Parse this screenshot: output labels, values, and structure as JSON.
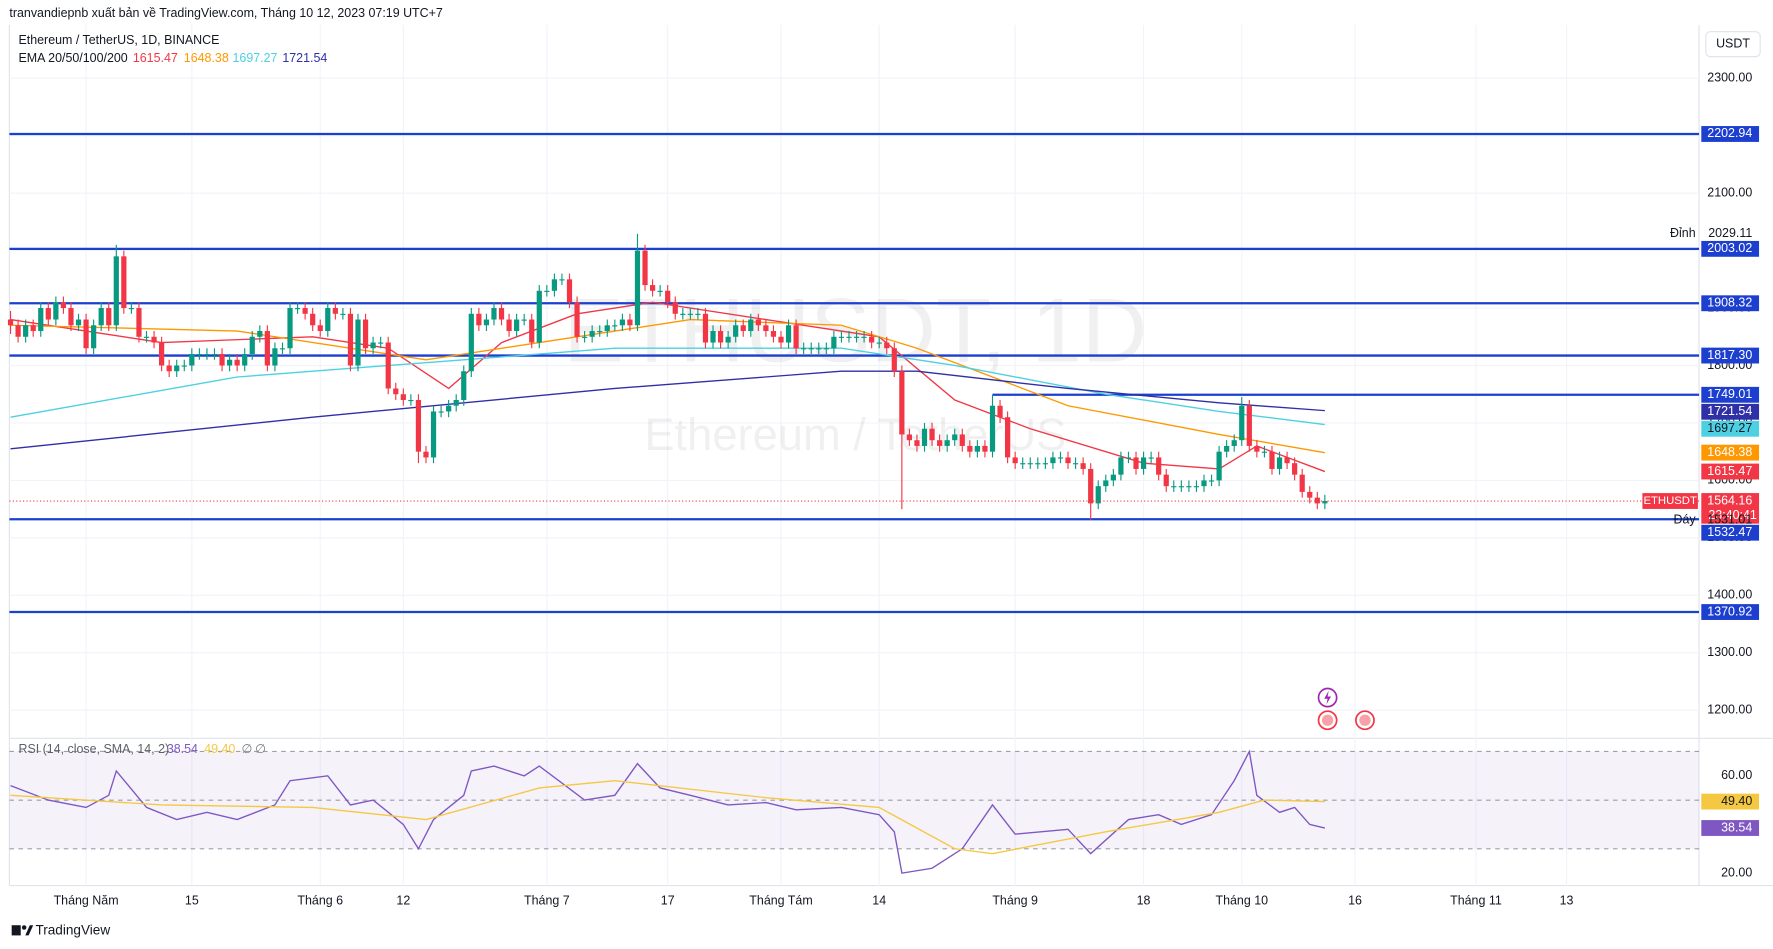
{
  "header": {
    "publisher": "tranvandiepnb xuất bản về TradingView.com, Tháng 10 12, 2023 07:19 UTC+7",
    "footer": "TradingView",
    "currency_button": "USDT"
  },
  "chart_data": {
    "type": "candlestick",
    "title": "Ethereum / TetherUS, 1D, BINANCE",
    "symbol": "ETHUSDT",
    "watermark": "ETHUSDT, 1D",
    "watermark_subtitle": "Ethereum / TetherUS",
    "countdown": "23:40:41",
    "up_color": "#089981",
    "down_color": "#f23645",
    "open": [
      1880,
      1870,
      1850,
      1870,
      1860,
      1900,
      1880,
      1910,
      1900,
      1870,
      1880,
      1830,
      1870,
      1900,
      1870,
      1990,
      1900,
      1900,
      1850,
      1850,
      1840,
      1800,
      1790,
      1800,
      1800,
      1820,
      1820,
      1820,
      1820,
      1800,
      1810,
      1800,
      1820,
      1850,
      1860,
      1800,
      1830,
      1830,
      1900,
      1900,
      1890,
      1870,
      1860,
      1900,
      1890,
      1890,
      1800,
      1880,
      1830,
      1840,
      1840,
      1760,
      1750,
      1740,
      1740,
      1650,
      1640,
      1720,
      1720,
      1730,
      1740,
      1790,
      1890,
      1870,
      1880,
      1900,
      1880,
      1860,
      1880,
      1880,
      1840,
      1930,
      1930,
      1950,
      1950,
      1910,
      1850,
      1850,
      1860,
      1860,
      1870,
      1870,
      1880,
      1870,
      2000,
      1940,
      1930,
      1930,
      1910,
      1890,
      1890,
      1890,
      1890,
      1840,
      1860,
      1840,
      1850,
      1870,
      1860,
      1880,
      1870,
      1860,
      1850,
      1840,
      1870,
      1830,
      1830,
      1830,
      1830,
      1830,
      1850,
      1850,
      1850,
      1850,
      1850,
      1840,
      1840,
      1830,
      1790,
      1680,
      1670,
      1660,
      1690,
      1670,
      1660,
      1670,
      1680,
      1660,
      1650,
      1660,
      1650,
      1730,
      1710,
      1640,
      1630,
      1630,
      1630,
      1630,
      1630,
      1640,
      1640,
      1630,
      1630,
      1620,
      1560,
      1590,
      1600,
      1610,
      1640,
      1640,
      1620,
      1640,
      1640,
      1610,
      1590,
      1590,
      1590,
      1590,
      1590,
      1600,
      1600,
      1650,
      1660,
      1670,
      1730,
      1660,
      1650,
      1650,
      1620,
      1640,
      1630,
      1610,
      1580,
      1570,
      1560
    ],
    "high": [
      1895,
      1880,
      1880,
      1880,
      1910,
      1910,
      1920,
      1920,
      1910,
      1890,
      1890,
      1880,
      1910,
      1910,
      2010,
      2000,
      1910,
      1910,
      1860,
      1860,
      1850,
      1810,
      1810,
      1810,
      1830,
      1830,
      1830,
      1830,
      1830,
      1820,
      1820,
      1830,
      1860,
      1870,
      1870,
      1840,
      1840,
      1910,
      1910,
      1910,
      1900,
      1880,
      1910,
      1910,
      1900,
      1900,
      1890,
      1890,
      1850,
      1850,
      1850,
      1770,
      1760,
      1750,
      1750,
      1660,
      1730,
      1730,
      1740,
      1750,
      1800,
      1900,
      1900,
      1890,
      1910,
      1910,
      1890,
      1890,
      1890,
      1890,
      1940,
      1940,
      1960,
      1960,
      1960,
      1920,
      1860,
      1870,
      1870,
      1880,
      1880,
      1890,
      1890,
      2029.11,
      2010,
      1950,
      1940,
      1940,
      1920,
      1900,
      1900,
      1900,
      1900,
      1870,
      1870,
      1860,
      1880,
      1880,
      1890,
      1890,
      1880,
      1870,
      1860,
      1880,
      1880,
      1840,
      1840,
      1840,
      1840,
      1860,
      1860,
      1860,
      1860,
      1860,
      1860,
      1850,
      1850,
      1840,
      1800,
      1690,
      1680,
      1700,
      1700,
      1680,
      1680,
      1690,
      1690,
      1670,
      1670,
      1670,
      1749.01,
      1740,
      1720,
      1650,
      1640,
      1640,
      1640,
      1640,
      1650,
      1650,
      1650,
      1640,
      1640,
      1630,
      1600,
      1610,
      1620,
      1650,
      1650,
      1650,
      1650,
      1650,
      1650,
      1620,
      1600,
      1600,
      1600,
      1600,
      1610,
      1610,
      1660,
      1670,
      1680,
      1745,
      1740,
      1670,
      1660,
      1660,
      1650,
      1650,
      1640,
      1620,
      1590,
      1580,
      1575
    ],
    "low": [
      1855,
      1840,
      1840,
      1850,
      1850,
      1870,
      1870,
      1890,
      1860,
      1860,
      1820,
      1820,
      1860,
      1860,
      1860,
      1890,
      1890,
      1840,
      1840,
      1830,
      1790,
      1780,
      1780,
      1790,
      1790,
      1810,
      1810,
      1810,
      1790,
      1790,
      1790,
      1790,
      1810,
      1840,
      1790,
      1790,
      1820,
      1820,
      1890,
      1880,
      1860,
      1850,
      1850,
      1880,
      1880,
      1790,
      1790,
      1820,
      1820,
      1830,
      1750,
      1740,
      1730,
      1730,
      1630,
      1630,
      1630,
      1710,
      1710,
      1720,
      1730,
      1780,
      1860,
      1860,
      1870,
      1870,
      1850,
      1850,
      1870,
      1830,
      1830,
      1920,
      1920,
      1940,
      1900,
      1840,
      1840,
      1840,
      1850,
      1850,
      1860,
      1860,
      1860,
      1860,
      1930,
      1920,
      1920,
      1900,
      1880,
      1880,
      1880,
      1880,
      1830,
      1830,
      1830,
      1830,
      1840,
      1850,
      1850,
      1860,
      1850,
      1840,
      1830,
      1830,
      1820,
      1820,
      1820,
      1820,
      1820,
      1820,
      1840,
      1840,
      1840,
      1840,
      1830,
      1830,
      1820,
      1780,
      1550,
      1660,
      1650,
      1650,
      1660,
      1650,
      1650,
      1660,
      1650,
      1640,
      1640,
      1640,
      1640,
      1700,
      1630,
      1620,
      1620,
      1620,
      1620,
      1620,
      1620,
      1630,
      1620,
      1620,
      1610,
      1531.01,
      1550,
      1580,
      1590,
      1600,
      1630,
      1610,
      1610,
      1630,
      1600,
      1580,
      1580,
      1580,
      1580,
      1580,
      1580,
      1590,
      1590,
      1640,
      1650,
      1660,
      1650,
      1640,
      1640,
      1610,
      1610,
      1620,
      1600,
      1570,
      1560,
      1550,
      1550
    ],
    "close": [
      1870,
      1850,
      1870,
      1860,
      1900,
      1880,
      1910,
      1900,
      1870,
      1880,
      1830,
      1870,
      1900,
      1870,
      1990,
      1900,
      1900,
      1850,
      1850,
      1840,
      1800,
      1790,
      1800,
      1800,
      1820,
      1820,
      1820,
      1820,
      1800,
      1810,
      1800,
      1820,
      1850,
      1860,
      1800,
      1830,
      1830,
      1900,
      1900,
      1890,
      1870,
      1860,
      1900,
      1890,
      1890,
      1800,
      1880,
      1830,
      1840,
      1840,
      1760,
      1750,
      1740,
      1740,
      1650,
      1640,
      1720,
      1720,
      1730,
      1740,
      1790,
      1890,
      1870,
      1880,
      1900,
      1880,
      1860,
      1880,
      1880,
      1840,
      1930,
      1930,
      1950,
      1950,
      1910,
      1850,
      1850,
      1860,
      1860,
      1870,
      1870,
      1880,
      1870,
      2000,
      1940,
      1930,
      1930,
      1910,
      1890,
      1890,
      1890,
      1890,
      1840,
      1860,
      1840,
      1850,
      1870,
      1860,
      1880,
      1870,
      1860,
      1850,
      1840,
      1870,
      1830,
      1830,
      1830,
      1830,
      1830,
      1850,
      1850,
      1850,
      1850,
      1850,
      1840,
      1840,
      1830,
      1790,
      1680,
      1670,
      1660,
      1690,
      1670,
      1660,
      1670,
      1680,
      1660,
      1650,
      1660,
      1650,
      1730,
      1710,
      1640,
      1630,
      1630,
      1630,
      1630,
      1630,
      1640,
      1640,
      1630,
      1630,
      1620,
      1560,
      1590,
      1600,
      1610,
      1640,
      1640,
      1620,
      1640,
      1640,
      1610,
      1590,
      1590,
      1590,
      1590,
      1590,
      1600,
      1600,
      1650,
      1660,
      1670,
      1730,
      1660,
      1650,
      1650,
      1620,
      1640,
      1630,
      1610,
      1580,
      1570,
      1560,
      1564.16
    ],
    "xticks": [
      {
        "value": 10,
        "label": "Tháng Năm"
      },
      {
        "value": 24,
        "label": "15"
      },
      {
        "value": 41,
        "label": "Tháng 6"
      },
      {
        "value": 52,
        "label": "12"
      },
      {
        "value": 71,
        "label": "Tháng 7"
      },
      {
        "value": 87,
        "label": "17"
      },
      {
        "value": 102,
        "label": "Tháng Tám"
      },
      {
        "value": 115,
        "label": "14"
      },
      {
        "value": 133,
        "label": "Tháng 9"
      },
      {
        "value": 150,
        "label": "18"
      },
      {
        "value": 163,
        "label": "Tháng 10"
      },
      {
        "value": 178,
        "label": "16"
      },
      {
        "value": 194,
        "label": "Tháng 11"
      },
      {
        "value": 206,
        "label": "13"
      }
    ],
    "ylim": [
      1155,
      2377
    ],
    "yticks": [
      {
        "value": 2300,
        "label": "2300.00"
      },
      {
        "value": 2200,
        "label": "2200.00"
      },
      {
        "value": 2100,
        "label": "2100.00"
      },
      {
        "value": 2000,
        "label": "2000.00"
      },
      {
        "value": 1900,
        "label": "1900.00"
      },
      {
        "value": 1800,
        "label": "1800.00"
      },
      {
        "value": 1700,
        "label": "1700.00"
      },
      {
        "value": 1600,
        "label": "1600.00"
      },
      {
        "value": 1500,
        "label": "1500.00"
      },
      {
        "value": 1400,
        "label": "1400.00"
      },
      {
        "value": 1300,
        "label": "1300.00"
      },
      {
        "value": 1200,
        "label": "1200.00"
      }
    ],
    "grid": true,
    "levels": [
      2202.94,
      2003.02,
      1908.32,
      {
        "value": 1817.3,
        "label": "1817.30"
      },
      1532.47,
      1370.92
    ],
    "level_color": "#1c3fcf",
    "ray": {
      "value": 1749.01,
      "start": 130
    },
    "high_label": "Đỉnh",
    "low_label": "Đáy",
    "ema": {
      "label": "EMA 20/50/100/200",
      "series": [
        {
          "color": "#f23645",
          "text_color": "#ffffff",
          "points": [
            [
              0,
              1880
            ],
            [
              20,
              1840
            ],
            [
              40,
              1850
            ],
            [
              50,
              1830
            ],
            [
              58,
              1760
            ],
            [
              65,
              1840
            ],
            [
              75,
              1890
            ],
            [
              85,
              1910
            ],
            [
              100,
              1880
            ],
            [
              115,
              1850
            ],
            [
              125,
              1740
            ],
            [
              135,
              1690
            ],
            [
              150,
              1630
            ],
            [
              160,
              1620
            ],
            [
              165,
              1660
            ],
            [
              174,
              1615.47
            ]
          ]
        },
        {
          "color": "#ff9800",
          "text_color": "#ffffff",
          "points": [
            [
              0,
              1870
            ],
            [
              30,
              1860
            ],
            [
              55,
              1810
            ],
            [
              70,
              1840
            ],
            [
              90,
              1880
            ],
            [
              110,
              1870
            ],
            [
              120,
              1830
            ],
            [
              140,
              1730
            ],
            [
              160,
              1680
            ],
            [
              174,
              1648.38
            ]
          ]
        },
        {
          "color": "#4dd0e1",
          "text_color": "#131722",
          "points": [
            [
              0,
              1710
            ],
            [
              30,
              1780
            ],
            [
              60,
              1810
            ],
            [
              80,
              1830
            ],
            [
              110,
              1830
            ],
            [
              125,
              1800
            ],
            [
              145,
              1750
            ],
            [
              160,
              1720
            ],
            [
              174,
              1697.27
            ]
          ]
        },
        {
          "color": "#2f2fa8",
          "text_color": "#ffffff",
          "points": [
            [
              0,
              1655
            ],
            [
              40,
              1710
            ],
            [
              80,
              1760
            ],
            [
              110,
              1790
            ],
            [
              120,
              1790
            ],
            [
              140,
              1760
            ],
            [
              160,
              1735
            ],
            [
              174,
              1721.54
            ]
          ]
        }
      ]
    },
    "rsi": {
      "label": "RSI (14, close, SMA, 14, 2)",
      "ylim": [
        15.8,
        74
      ],
      "yticks": [
        {
          "value": 60,
          "label": "60.00"
        },
        {
          "value": 20,
          "label": "20.00"
        }
      ],
      "levels": [
        70,
        50,
        30
      ],
      "extra_values": [
        "∅",
        "∅"
      ],
      "series": [
        {
          "color": "#7e57c2",
          "points": [
            [
              0,
              56
            ],
            [
              5,
              50
            ],
            [
              10,
              47
            ],
            [
              13,
              52
            ],
            [
              14,
              62
            ],
            [
              18,
              47
            ],
            [
              22,
              42
            ],
            [
              26,
              45
            ],
            [
              30,
              42
            ],
            [
              35,
              48
            ],
            [
              37,
              58
            ],
            [
              42,
              60
            ],
            [
              45,
              48
            ],
            [
              48,
              50
            ],
            [
              52,
              40
            ],
            [
              54,
              30
            ],
            [
              56,
              42
            ],
            [
              60,
              52
            ],
            [
              61,
              62
            ],
            [
              64,
              64
            ],
            [
              68,
              60
            ],
            [
              70,
              64
            ],
            [
              76,
              50
            ],
            [
              80,
              52
            ],
            [
              83,
              65
            ],
            [
              86,
              55
            ],
            [
              90,
              52
            ],
            [
              95,
              48
            ],
            [
              100,
              49
            ],
            [
              104,
              46
            ],
            [
              110,
              47
            ],
            [
              115,
              44
            ],
            [
              117,
              37
            ],
            [
              118,
              20
            ],
            [
              122,
              22
            ],
            [
              126,
              30
            ],
            [
              130,
              48
            ],
            [
              133,
              36
            ],
            [
              140,
              38
            ],
            [
              143,
              28
            ],
            [
              148,
              42
            ],
            [
              152,
              44
            ],
            [
              155,
              40
            ],
            [
              159,
              44
            ],
            [
              162,
              58
            ],
            [
              164,
              70
            ],
            [
              165,
              52
            ],
            [
              168,
              45
            ],
            [
              170,
              47
            ],
            [
              172,
              40
            ],
            [
              174,
              38.54
            ]
          ]
        },
        {
          "color": "#f5c842",
          "last_label": "49.40",
          "points": [
            [
              0,
              52
            ],
            [
              20,
              48
            ],
            [
              40,
              47
            ],
            [
              55,
              42
            ],
            [
              70,
              55
            ],
            [
              80,
              58
            ],
            [
              100,
              51
            ],
            [
              115,
              47
            ],
            [
              125,
              30
            ],
            [
              130,
              28
            ],
            [
              145,
              37
            ],
            [
              160,
              45
            ],
            [
              166,
              50
            ],
            [
              174,
              49.4
            ]
          ]
        }
      ]
    }
  }
}
